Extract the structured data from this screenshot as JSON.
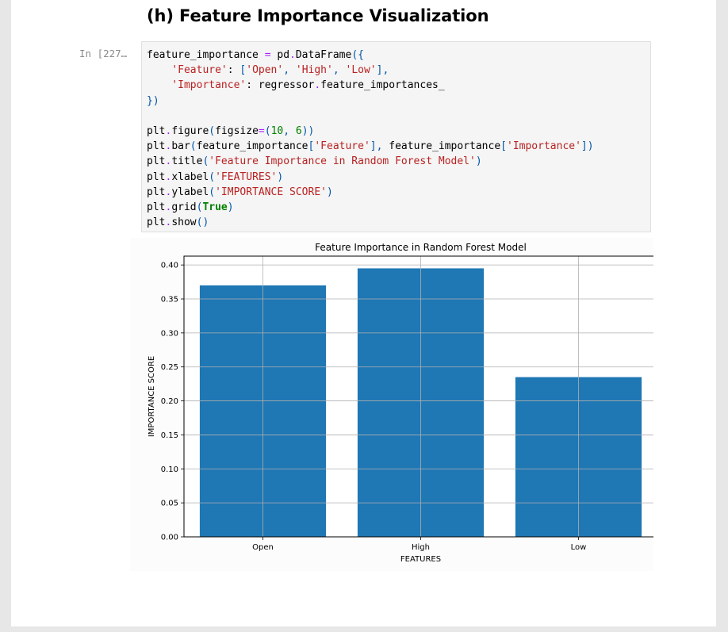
{
  "heading": "(h) Feature Importance Visualization",
  "cell": {
    "prompt": "In [227…",
    "code_lines": [
      "feature_importance = pd.DataFrame({",
      "    'Feature': ['Open', 'High', 'Low'],",
      "    'Importance': regressor.feature_importances_",
      "})",
      "",
      "plt.figure(figsize=(10, 6))",
      "plt.bar(feature_importance['Feature'], feature_importance['Importance'])",
      "plt.title('Feature Importance in Random Forest Model')",
      "plt.xlabel('FEATURES')",
      "plt.ylabel('IMPORTANCE SCORE')",
      "plt.grid(True)",
      "plt.show()"
    ]
  },
  "chart_data": {
    "type": "bar",
    "title": "Feature Importance in Random Forest Model",
    "xlabel": "FEATURES",
    "ylabel": "IMPORTANCE SCORE",
    "categories": [
      "Open",
      "High",
      "Low"
    ],
    "values": [
      0.37,
      0.395,
      0.235
    ],
    "ylim": [
      0,
      0.413
    ],
    "yticks": [
      "0.00",
      "0.05",
      "0.10",
      "0.15",
      "0.20",
      "0.25",
      "0.30",
      "0.35",
      "0.40"
    ],
    "grid": true,
    "bar_color": "#1f77b4"
  }
}
